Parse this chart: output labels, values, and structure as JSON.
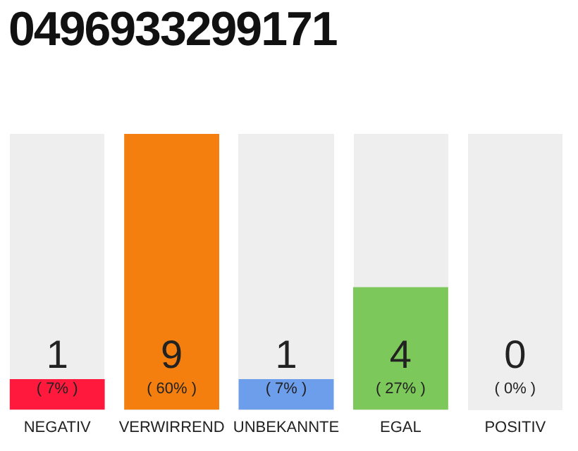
{
  "chart_data": {
    "type": "bar",
    "title": "0496933299171",
    "categories": [
      "NEGATIV",
      "VERWIRREND",
      "UNBEKANNTE",
      "EGAL",
      "POSITIV"
    ],
    "values": [
      1,
      9,
      1,
      4,
      0
    ],
    "colors": [
      "#ff1a3d",
      "#f47f0e",
      "#6d9eeb",
      "#7dc85a",
      "#d0d0d0"
    ],
    "data_labels": true,
    "annotations": [
      "( 7% )",
      "( 60% )",
      "( 7% )",
      "( 27% )",
      "( 0% )"
    ],
    "grid": false,
    "legend": false,
    "tick_labels": "x"
  }
}
